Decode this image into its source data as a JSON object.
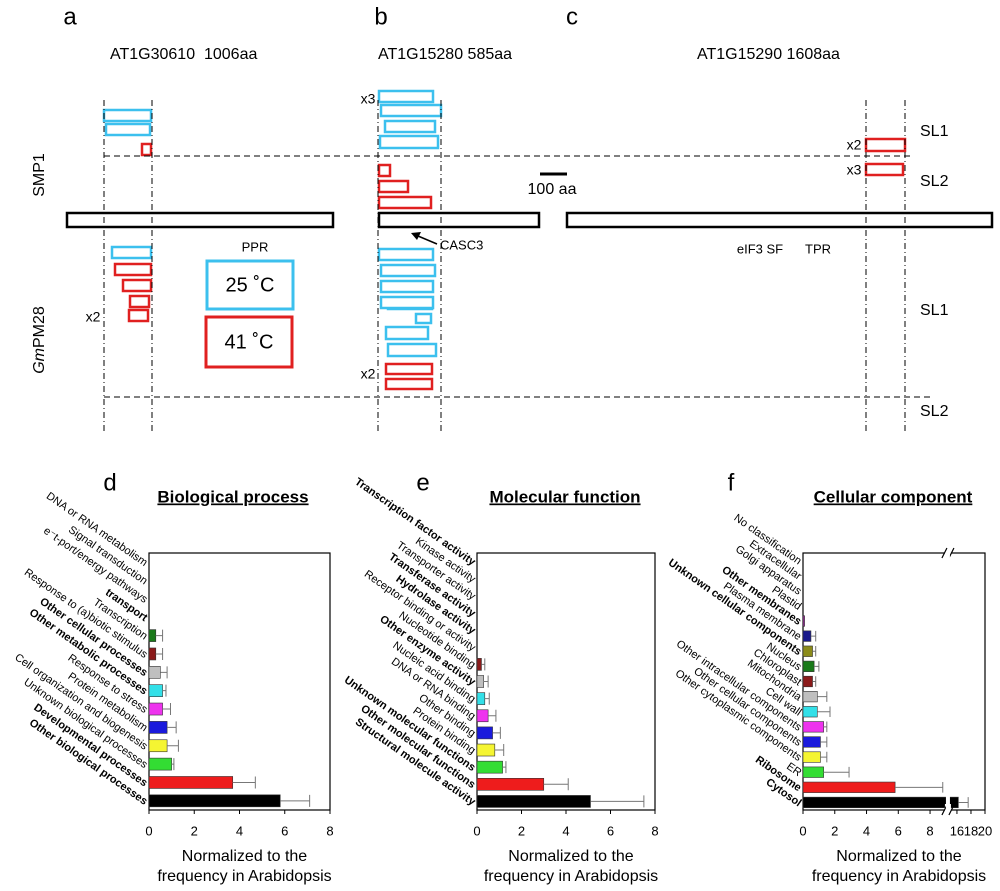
{
  "diagram": {
    "panels": [
      "a",
      "b",
      "c"
    ],
    "genes": [
      "AT1G30610  1006aa",
      "AT1G15280 585aa",
      "AT1G15290 1608aa"
    ],
    "smp1": "SMP1",
    "gmpm28": [
      "Gm",
      "PM28"
    ],
    "levels": [
      "SL1",
      "SL2",
      "SL1",
      "SL2"
    ],
    "multipliers": [
      "x3",
      "x2",
      "x3",
      "x2",
      "x2"
    ],
    "scale": "100 aa",
    "domains": [
      "PPR",
      "CASC3",
      "eIF3 SF",
      "TPR"
    ],
    "legend": [
      "25 ˚C",
      "41 ˚C"
    ]
  },
  "chart_data": [
    {
      "type": "bar",
      "orientation": "horizontal",
      "panel": "d",
      "title": "Biological process",
      "categories": [
        "DNA or RNA metabolism",
        "Signal transduction",
        "e⁻t-port/energy pathways",
        "transport",
        "Transcription",
        "Response to (a)biotic stimulus",
        "Other cellular processes",
        "Other metabolic processes",
        "Response to stress",
        "Protein metabolism",
        "Cell organization and biogenesis",
        "Unknown biological processes",
        "Developmental processes",
        "Other biological processes"
      ],
      "bold": [
        false,
        false,
        false,
        true,
        false,
        false,
        true,
        true,
        false,
        false,
        false,
        false,
        true,
        true
      ],
      "values": [
        0,
        0,
        0,
        0,
        0.3,
        0.3,
        0.5,
        0.6,
        0.6,
        0.8,
        0.8,
        1.0,
        3.7,
        5.8
      ],
      "errors": [
        null,
        null,
        null,
        null,
        0.3,
        0.3,
        0.3,
        0.15,
        0.35,
        0.4,
        0.5,
        0.1,
        1.0,
        1.3
      ],
      "colors": [
        null,
        null,
        null,
        null,
        "#1a7a1a",
        "#8b1a1a",
        "#bfbfbf",
        "#33e0e8",
        "#ee33ee",
        "#1a1adc",
        "#f5f532",
        "#33dd33",
        "#ee1c1c",
        "#000000"
      ],
      "xlim": [
        0,
        8
      ],
      "xticks": [
        0,
        2,
        4,
        6,
        8
      ],
      "xlabel": [
        "Normalized to the",
        "frequency in Arabidopsis"
      ]
    },
    {
      "type": "bar",
      "orientation": "horizontal",
      "panel": "e",
      "title": "Molecular function",
      "categories": [
        "Transcription factor activity",
        "Kinase activity",
        "Transporter activity",
        "Transferase activity",
        "Hydrolase activity",
        "Receptor binding or activity",
        "Nucleotide binding",
        "Other enzyme activity",
        "Nucleic acid binding",
        "DNA or RNA binding",
        "Other binding",
        "Protein binding",
        "Unknown molecular functions",
        "Other molecular functions",
        "Structural molecule activity"
      ],
      "bold": [
        true,
        false,
        false,
        true,
        true,
        false,
        false,
        true,
        false,
        false,
        false,
        false,
        true,
        true,
        true
      ],
      "values": [
        0,
        0,
        0,
        0,
        0,
        0,
        0.2,
        0.3,
        0.35,
        0.5,
        0.7,
        0.8,
        1.15,
        3.0,
        5.1
      ],
      "errors": [
        null,
        null,
        null,
        null,
        null,
        null,
        0.15,
        0.2,
        0.2,
        0.35,
        0.35,
        0.4,
        0.15,
        1.1,
        2.4
      ],
      "colors": [
        null,
        null,
        null,
        null,
        null,
        null,
        "#8b1a1a",
        "#bfbfbf",
        "#33e0e8",
        "#ee33ee",
        "#1a1adc",
        "#f5f532",
        "#33dd33",
        "#ee1c1c",
        "#000000"
      ],
      "xlim": [
        0,
        8
      ],
      "xticks": [
        0,
        2,
        4,
        6,
        8
      ],
      "xlabel": [
        "Normalized to the",
        "frequency in Arabidopsis"
      ]
    },
    {
      "type": "bar",
      "orientation": "horizontal",
      "panel": "f",
      "title": "Cellular component",
      "categories": [
        "No classification",
        "Extracellular",
        "Golgi apparatus",
        "Plastid",
        "Other membranes",
        "Plasma membrane",
        "Unknown cellular components",
        "Nucleus",
        "Chloroplast",
        "Mitochondria",
        "Cell wall",
        "Other intracellular components",
        "Other cellular components",
        "Other cytoplasmic components",
        "ER",
        "Ribosome",
        "Cytosol"
      ],
      "bold": [
        false,
        false,
        false,
        false,
        true,
        false,
        true,
        false,
        false,
        false,
        false,
        false,
        false,
        false,
        false,
        true,
        true
      ],
      "values": [
        0,
        0,
        0,
        0,
        0.1,
        0.5,
        0.6,
        0.7,
        0.6,
        0.9,
        0.9,
        1.3,
        1.1,
        1.1,
        1.3,
        5.8,
        16.2
      ],
      "errors": [
        null,
        null,
        null,
        null,
        null,
        0.3,
        0.2,
        0.3,
        0.2,
        0.6,
        0.8,
        0.2,
        0.4,
        0.4,
        1.6,
        3.0,
        1.4
      ],
      "colors": [
        null,
        null,
        null,
        null,
        "#9a2a9a",
        "#1a1a8b",
        "#8b8b1a",
        "#1a7a1a",
        "#8b1a1a",
        "#bfbfbf",
        "#33e0e8",
        "#ee33ee",
        "#1a1adc",
        "#f5f532",
        "#33dd33",
        "#ee1c1c",
        "#000000"
      ],
      "xlim": [
        0,
        20
      ],
      "xbreak": [
        9,
        15
      ],
      "xticks": [
        0,
        2,
        4,
        6,
        8,
        16,
        18,
        20
      ],
      "xlabel": [
        "Normalized to the",
        "frequency in Arabidopsis"
      ]
    }
  ]
}
